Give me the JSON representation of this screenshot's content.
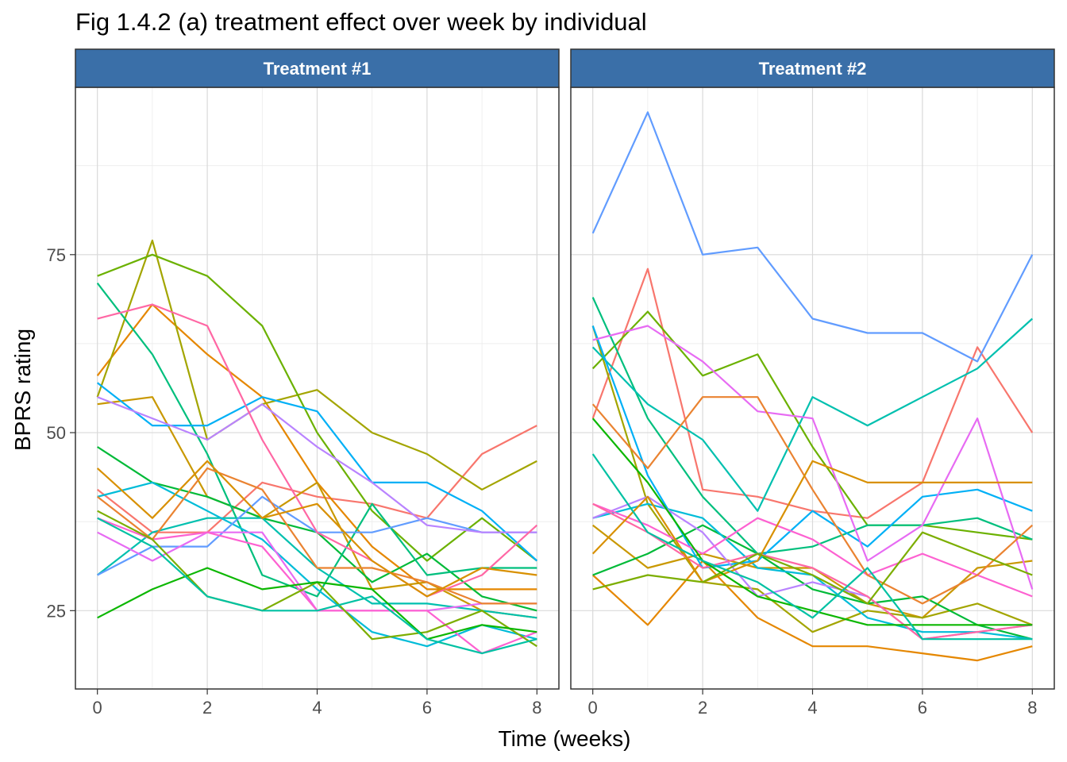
{
  "title": "Fig 1.4.2 (a) treatment effect over week by individual",
  "colors": {
    "strip_fill": "#3A6FA8",
    "strip_text": "#FFFFFF",
    "grid_major": "#D9D9D9",
    "grid_minor": "#EBEBEB",
    "axis_text": "#4D4D4D",
    "subject_palette": [
      "#F8766D",
      "#E58700",
      "#C99800",
      "#A3A500",
      "#6BB100",
      "#00BA38",
      "#00BF7D",
      "#00C0AF",
      "#00BCD8",
      "#00B0F6",
      "#619CFF",
      "#B983FF",
      "#E76BF3",
      "#FD61D1",
      "#FF67A4",
      "#EA8331",
      "#D89000",
      "#7CAE00",
      "#0CB702",
      "#00C1A3"
    ]
  },
  "chart_data": {
    "type": "line",
    "title": "Fig 1.4.2 (a) treatment effect over week by individual",
    "xlabel": "Time (weeks)",
    "ylabel": "BPRS rating",
    "xlim": [
      -0.4,
      8.4
    ],
    "ylim": [
      14,
      98.5
    ],
    "xticks": [
      0,
      2,
      4,
      6,
      8
    ],
    "yticks": [
      25,
      50,
      75
    ],
    "x": [
      0,
      1,
      2,
      3,
      4,
      5,
      6,
      7,
      8
    ],
    "grid": true,
    "legend": "none",
    "panels": [
      {
        "label": "Treatment #1",
        "series": [
          {
            "values": [
              42,
              36,
              36,
              43,
              41,
              40,
              38,
              47,
              51
            ]
          },
          {
            "values": [
              58,
              68,
              61,
              55,
              43,
              34,
              28,
              28,
              28
            ]
          },
          {
            "values": [
              54,
              55,
              41,
              38,
              43,
              28,
              29,
              25,
              24
            ]
          },
          {
            "values": [
              55,
              77,
              49,
              54,
              56,
              50,
              47,
              42,
              46
            ]
          },
          {
            "values": [
              72,
              75,
              72,
              65,
              50,
              39,
              32,
              38,
              32
            ]
          },
          {
            "values": [
              48,
              43,
              41,
              38,
              36,
              29,
              33,
              27,
              25
            ]
          },
          {
            "values": [
              71,
              61,
              47,
              30,
              27,
              40,
              30,
              31,
              31
            ]
          },
          {
            "values": [
              30,
              36,
              38,
              38,
              31,
              26,
              26,
              25,
              24
            ]
          },
          {
            "values": [
              41,
              43,
              39,
              35,
              28,
              22,
              20,
              23,
              21
            ]
          },
          {
            "values": [
              57,
              51,
              51,
              55,
              53,
              43,
              43,
              39,
              32
            ]
          },
          {
            "values": [
              30,
              34,
              34,
              41,
              36,
              36,
              38,
              36,
              36
            ]
          },
          {
            "values": [
              55,
              52,
              49,
              54,
              48,
              43,
              37,
              36,
              36
            ]
          },
          {
            "values": [
              36,
              32,
              36,
              36,
              25,
              25,
              25,
              26,
              26
            ]
          },
          {
            "values": [
              38,
              35,
              36,
              34,
              25,
              25,
              25,
              19,
              22
            ]
          },
          {
            "values": [
              66,
              68,
              65,
              49,
              36,
              32,
              27,
              30,
              37
            ]
          },
          {
            "values": [
              41,
              35,
              45,
              42,
              31,
              31,
              29,
              26,
              26
            ]
          },
          {
            "values": [
              45,
              38,
              46,
              38,
              40,
              32,
              27,
              31,
              30
            ]
          },
          {
            "values": [
              39,
              35,
              27,
              25,
              29,
              21,
              22,
              25,
              20
            ]
          },
          {
            "values": [
              24,
              28,
              31,
              28,
              29,
              28,
              21,
              23,
              22
            ]
          },
          {
            "values": [
              38,
              34,
              27,
              25,
              25,
              27,
              21,
              19,
              21
            ]
          }
        ]
      },
      {
        "label": "Treatment #2",
        "series": [
          {
            "values": [
              52,
              73,
              42,
              41,
              39,
              38,
              43,
              62,
              50
            ]
          },
          {
            "values": [
              30,
              23,
              32,
              24,
              20,
              20,
              19,
              18,
              20
            ]
          },
          {
            "values": [
              37,
              31,
              33,
              31,
              31,
              26,
              24,
              31,
              32
            ]
          },
          {
            "values": [
              65,
              40,
              29,
              28,
              22,
              25,
              24,
              26,
              23
            ]
          },
          {
            "values": [
              59,
              67,
              58,
              61,
              48,
              37,
              37,
              36,
              35
            ]
          },
          {
            "values": [
              30,
              33,
              37,
              33,
              28,
              26,
              27,
              23,
              21
            ]
          },
          {
            "values": [
              69,
              52,
              41,
              33,
              34,
              37,
              37,
              38,
              35
            ]
          },
          {
            "values": [
              62,
              54,
              49,
              39,
              55,
              51,
              55,
              59,
              66
            ]
          },
          {
            "values": [
              38,
              40,
              38,
              31,
              30,
              24,
              22,
              22,
              21
            ]
          },
          {
            "values": [
              65,
              44,
              31,
              32,
              39,
              34,
              41,
              42,
              39
            ]
          },
          {
            "values": [
              78,
              95,
              75,
              76,
              66,
              64,
              64,
              60,
              75
            ]
          },
          {
            "values": [
              38,
              41,
              36,
              27,
              29,
              27,
              21,
              22,
              23
            ]
          },
          {
            "values": [
              63,
              65,
              60,
              53,
              52,
              32,
              37,
              52,
              28
            ]
          },
          {
            "values": [
              40,
              37,
              33,
              38,
              35,
              30,
              33,
              30,
              27
            ]
          },
          {
            "values": [
              40,
              36,
              31,
              33,
              31,
              27,
              21,
              22,
              23
            ]
          },
          {
            "values": [
              54,
              45,
              55,
              55,
              42,
              30,
              26,
              30,
              37
            ]
          },
          {
            "values": [
              33,
              41,
              29,
              32,
              46,
              43,
              43,
              43,
              43
            ]
          },
          {
            "values": [
              28,
              30,
              29,
              33,
              30,
              26,
              36,
              33,
              30
            ]
          },
          {
            "values": [
              52,
              43,
              32,
              27,
              25,
              23,
              23,
              23,
              23
            ]
          },
          {
            "values": [
              47,
              36,
              32,
              29,
              24,
              31,
              21,
              21,
              21
            ]
          }
        ]
      }
    ]
  }
}
